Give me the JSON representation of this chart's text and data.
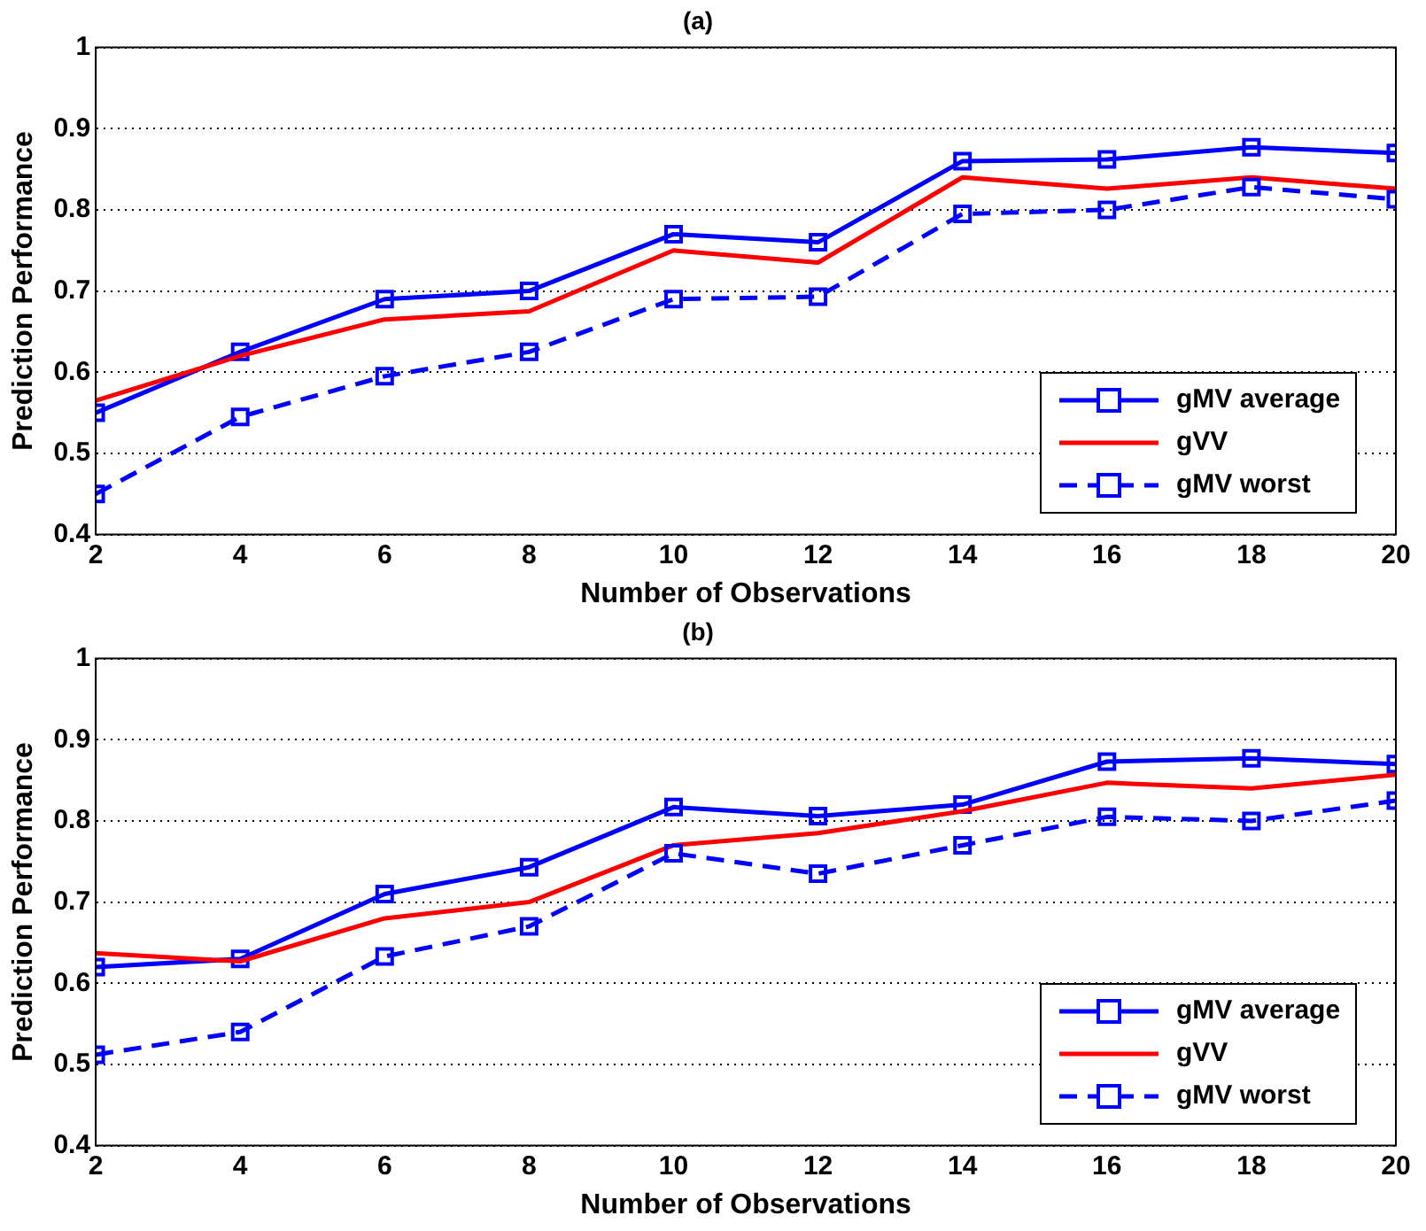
{
  "chart_data": [
    {
      "type": "line",
      "title": "(a)",
      "xlabel": "Number of Observations",
      "ylabel": "Prediction Performance",
      "x": [
        2,
        4,
        6,
        8,
        10,
        12,
        14,
        16,
        18,
        20
      ],
      "xlim": [
        2,
        20
      ],
      "xticks": [
        2,
        4,
        6,
        8,
        10,
        12,
        14,
        16,
        18,
        20
      ],
      "ylim": [
        0.4,
        1
      ],
      "yticks": [
        0.4,
        0.5,
        0.6,
        0.7,
        0.8,
        0.9,
        1
      ],
      "grid": "y",
      "legend": "right",
      "series": [
        {
          "name": "gMV average",
          "color": "#0000ff",
          "marker": "square",
          "line_style": "solid",
          "values": [
            0.55,
            0.625,
            0.69,
            0.7,
            0.77,
            0.76,
            0.86,
            0.862,
            0.877,
            0.87
          ]
        },
        {
          "name": "gVV",
          "color": "#ff0000",
          "marker": "none",
          "line_style": "solid",
          "values": [
            0.565,
            0.62,
            0.665,
            0.675,
            0.75,
            0.735,
            0.84,
            0.826,
            0.84,
            0.826
          ]
        },
        {
          "name": "gMV worst",
          "color": "#0000ff",
          "marker": "square",
          "line_style": "dashed",
          "values": [
            0.45,
            0.545,
            0.595,
            0.625,
            0.69,
            0.693,
            0.795,
            0.8,
            0.828,
            0.813
          ]
        }
      ]
    },
    {
      "type": "line",
      "title": "(b)",
      "xlabel": "Number of Observations",
      "ylabel": "Prediction Performance",
      "x": [
        2,
        4,
        6,
        8,
        10,
        12,
        14,
        16,
        18,
        20
      ],
      "xlim": [
        2,
        20
      ],
      "xticks": [
        2,
        4,
        6,
        8,
        10,
        12,
        14,
        16,
        18,
        20
      ],
      "ylim": [
        0.4,
        1
      ],
      "yticks": [
        0.4,
        0.5,
        0.6,
        0.7,
        0.8,
        0.9,
        1
      ],
      "grid": "y",
      "legend": "right",
      "series": [
        {
          "name": "gMV average",
          "color": "#0000ff",
          "marker": "square",
          "line_style": "solid",
          "values": [
            0.62,
            0.63,
            0.71,
            0.743,
            0.817,
            0.806,
            0.82,
            0.873,
            0.877,
            0.87
          ]
        },
        {
          "name": "gVV",
          "color": "#ff0000",
          "marker": "none",
          "line_style": "solid",
          "values": [
            0.637,
            0.627,
            0.68,
            0.7,
            0.77,
            0.785,
            0.812,
            0.847,
            0.84,
            0.857
          ]
        },
        {
          "name": "gMV worst",
          "color": "#0000ff",
          "marker": "square",
          "line_style": "dashed",
          "values": [
            0.512,
            0.54,
            0.633,
            0.67,
            0.76,
            0.735,
            0.77,
            0.805,
            0.8,
            0.825
          ]
        }
      ]
    }
  ]
}
